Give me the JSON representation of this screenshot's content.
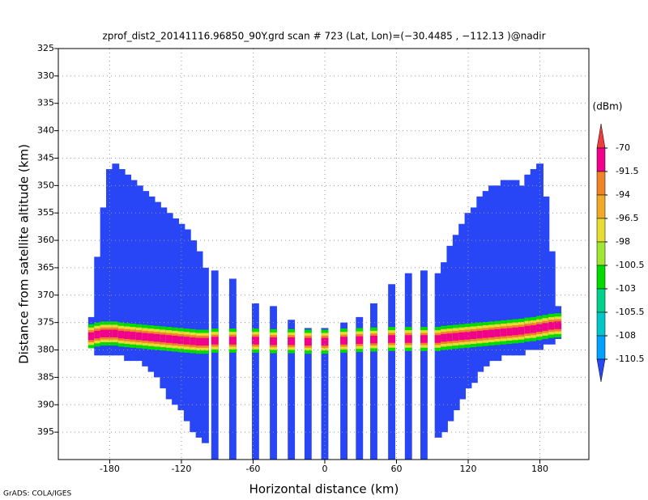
{
  "chart_data": {
    "type": "profile",
    "title": "zprof_dist2_20141116.96850_90Y.grd  scan # 723  (Lat, Lon)=(−30.4485 , −112.13 )@nadir",
    "x_label": "Horizontal distance (km)",
    "y_label": "Distance from satellite altitude (km)",
    "colorbar_unit": "(dBm)",
    "footer": "GrADS: COLA/IGES",
    "xlim": [
      -223,
      221
    ],
    "xticks": [
      -180,
      -120,
      -60,
      0,
      60,
      120,
      180
    ],
    "ylim": [
      325,
      400
    ],
    "yticks": [
      325,
      330,
      335,
      340,
      345,
      350,
      355,
      360,
      365,
      370,
      375,
      380,
      385,
      390,
      395
    ],
    "y_inverted": true,
    "grid": true,
    "levels": [
      -70,
      -91.5,
      -94,
      -96.5,
      -98,
      -100.5,
      -103,
      -105.5,
      -108,
      -110.5
    ],
    "colors": [
      "#f03c3c",
      "#f0008c",
      "#f08228",
      "#f0aa28",
      "#e6dc32",
      "#a0e632",
      "#00dc00",
      "#00d28c",
      "#00c8c8",
      "#00a0ff",
      "#2846f5"
    ],
    "columns": {
      "x": [
        -195,
        -190,
        -185,
        -180,
        -175,
        -170,
        -165,
        -160,
        -155,
        -150,
        -145,
        -140,
        -135,
        -130,
        -125,
        -120,
        -115,
        -110,
        -105,
        -100,
        -92,
        -77,
        -58,
        -43,
        -28,
        -14,
        0,
        16,
        29,
        41,
        56,
        70,
        83,
        95,
        100,
        105,
        110,
        115,
        120,
        125,
        130,
        135,
        140,
        145,
        150,
        155,
        160,
        165,
        170,
        175,
        180,
        185,
        190,
        195
      ],
      "top": [
        374,
        363,
        354,
        347,
        346,
        347,
        348,
        349,
        350,
        351,
        352,
        353,
        354,
        355,
        356,
        357,
        358,
        360,
        362,
        365,
        365.5,
        367,
        371.5,
        372,
        374.5,
        376,
        376,
        375,
        374,
        371.5,
        368,
        366,
        365.5,
        366,
        364,
        361,
        359,
        357,
        355,
        354,
        352,
        351,
        350,
        350,
        349,
        349,
        349,
        350,
        348,
        347,
        346,
        352,
        362,
        372
      ],
      "bottom": [
        379,
        381,
        381,
        381,
        381,
        381,
        382,
        382,
        382,
        383,
        384,
        385,
        387,
        389,
        390,
        391,
        393,
        395,
        396,
        397,
        400,
        400,
        400,
        400,
        400,
        400,
        400,
        400,
        400,
        400,
        400,
        400,
        400,
        396,
        395,
        393,
        391,
        389,
        387,
        386,
        384,
        383,
        382,
        382,
        381,
        381,
        381,
        381,
        380,
        380,
        380,
        379,
        379,
        378
      ],
      "peak": [
        377.5,
        377.2,
        377,
        377,
        377,
        377.2,
        377.3,
        377.4,
        377.5,
        377.6,
        377.7,
        377.8,
        377.9,
        378,
        378.1,
        378.2,
        378.3,
        378.4,
        378.5,
        378.5,
        378.3,
        378.3,
        378.3,
        378.4,
        378.4,
        378.5,
        378.5,
        378.3,
        378.2,
        378.1,
        378,
        378,
        378,
        378,
        377.8,
        377.7,
        377.6,
        377.5,
        377.4,
        377.3,
        377.2,
        377.1,
        377,
        376.9,
        376.8,
        376.7,
        376.6,
        376.5,
        376.3,
        376.2,
        376,
        375.8,
        375.6,
        375.5
      ]
    }
  }
}
